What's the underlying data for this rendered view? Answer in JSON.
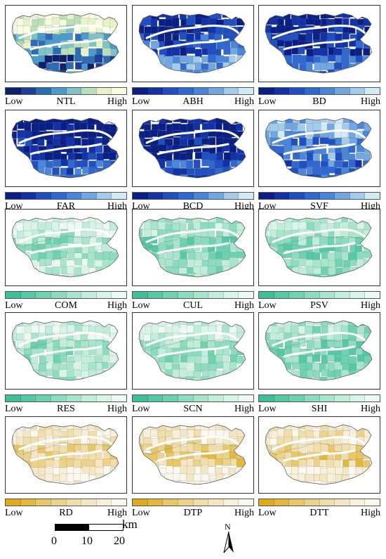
{
  "legend": {
    "low_label": "Low",
    "high_label": "High"
  },
  "palettes": {
    "yellow_blue": [
      "#0e1f6b",
      "#1d3f9a",
      "#2c6cb5",
      "#4b9bcc",
      "#7fc2c7",
      "#b8e1b9",
      "#e7f4c6",
      "#fbfde2"
    ],
    "blue": [
      "#0a1f86",
      "#1233a8",
      "#1f4fc0",
      "#3168cf",
      "#4a86d9",
      "#72a7e2",
      "#a3cbeb",
      "#d2ecf6"
    ],
    "green": [
      "#3ebf98",
      "#54c9a4",
      "#6ed2b1",
      "#8bdcc0",
      "#a7e5cf",
      "#c1eedc",
      "#d7f5e8",
      "#ebfaf4"
    ],
    "gold": [
      "#dcaa1a",
      "#e2b93e",
      "#e8c765",
      "#edd38a",
      "#f1deaa",
      "#f5e7c4",
      "#f9f0da",
      "#fcf8ee"
    ]
  },
  "panels": [
    {
      "name": "NTL",
      "palette": "yellow_blue",
      "levels": [
        0.85,
        0.55,
        0.3
      ]
    },
    {
      "name": "ABH",
      "palette": "blue",
      "levels": [
        0.15,
        0.45,
        0.6
      ]
    },
    {
      "name": "BD",
      "palette": "blue",
      "levels": [
        0.05,
        0.25,
        0.5
      ]
    },
    {
      "name": "FAR",
      "palette": "blue",
      "levels": [
        0.0,
        0.15,
        0.4
      ]
    },
    {
      "name": "BCD",
      "palette": "blue",
      "levels": [
        0.0,
        0.12,
        0.35
      ]
    },
    {
      "name": "SVF",
      "palette": "blue",
      "levels": [
        0.75,
        0.55,
        0.45
      ]
    },
    {
      "name": "COM",
      "palette": "green",
      "levels": [
        0.85,
        0.6,
        0.7
      ]
    },
    {
      "name": "CUL",
      "palette": "green",
      "levels": [
        0.6,
        0.35,
        0.5
      ]
    },
    {
      "name": "PSV",
      "palette": "green",
      "levels": [
        0.65,
        0.4,
        0.5
      ]
    },
    {
      "name": "RES",
      "palette": "green",
      "levels": [
        0.8,
        0.55,
        0.65
      ]
    },
    {
      "name": "SCN",
      "palette": "green",
      "levels": [
        0.75,
        0.5,
        0.6
      ]
    },
    {
      "name": "SHI",
      "palette": "green",
      "levels": [
        0.55,
        0.3,
        0.45
      ]
    },
    {
      "name": "RD",
      "palette": "gold",
      "levels": [
        0.7,
        0.45,
        0.85
      ]
    },
    {
      "name": "DTP",
      "palette": "gold",
      "levels": [
        0.75,
        0.4,
        0.85
      ]
    },
    {
      "name": "DTT",
      "palette": "gold",
      "levels": [
        0.7,
        0.45,
        0.85
      ]
    }
  ],
  "scale_bar": {
    "unit": "km",
    "ticks": [
      "0",
      "10",
      "20"
    ]
  },
  "north_arrow": {
    "letter": "N"
  }
}
